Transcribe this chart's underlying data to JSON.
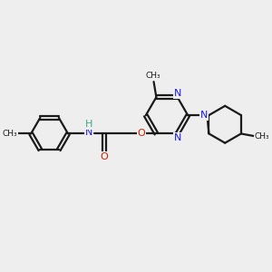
{
  "background_color": "#eeeeee",
  "bond_color": "#1a1a1a",
  "N_color": "#1a1aee",
  "O_color": "#cc2200",
  "NH_color": "#3aaa88",
  "H_color": "#3aaa88",
  "figsize": [
    3.0,
    3.0
  ],
  "dpi": 100,
  "xlim": [
    0,
    10
  ],
  "ylim": [
    0,
    10
  ]
}
